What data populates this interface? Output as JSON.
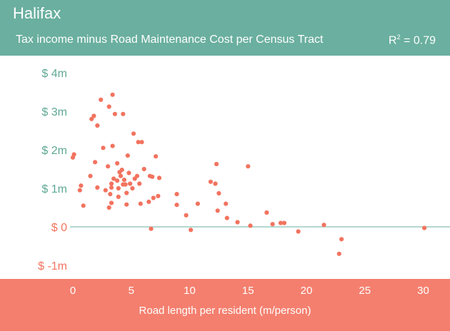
{
  "colors": {
    "header_bg": "#6aaf9f",
    "footer_bg": "#f47f6e",
    "point": "#f2735f",
    "zero_line": "#6aaf9f",
    "y_tick_positive": "#5ea894",
    "y_tick_nonpositive": "#f2735f",
    "x_tick": "#ffffff"
  },
  "header": {
    "title": "Halifax",
    "subtitle": "Tax income minus Road Maintenance Cost per Census Tract",
    "r2_label": "R",
    "r2_sup": "2",
    "r2_value": " = 0.79"
  },
  "chart_data": {
    "type": "scatter",
    "title": "Tax income minus Road Maintenance Cost per Census Tract",
    "xlabel": "Road length per resident (m/person)",
    "ylabel": "",
    "xlim": [
      -1.2,
      33.5
    ],
    "ylim": [
      -1.35,
      4.35
    ],
    "x_ticks": [
      0,
      5,
      10,
      15,
      20,
      25,
      30
    ],
    "x_tick_labels": [
      "0",
      "5",
      "10",
      "15",
      "20",
      "25",
      "30"
    ],
    "y_ticks": [
      4,
      3,
      2,
      1,
      0,
      -1
    ],
    "y_tick_labels": [
      "$ 4m",
      "$ 3m",
      "$ 2m",
      "$ 1m",
      "$ 0",
      "$ -1m"
    ],
    "annotation": "R² = 0.79",
    "grid": false,
    "zero_line": true,
    "points": [
      [
        0.0,
        1.8
      ],
      [
        0.1,
        1.88
      ],
      [
        0.6,
        0.95
      ],
      [
        0.7,
        1.07
      ],
      [
        0.9,
        0.55
      ],
      [
        1.5,
        1.32
      ],
      [
        1.6,
        2.8
      ],
      [
        1.8,
        2.88
      ],
      [
        1.9,
        1.68
      ],
      [
        2.1,
        2.63
      ],
      [
        2.1,
        1.02
      ],
      [
        2.4,
        3.3
      ],
      [
        2.6,
        2.05
      ],
      [
        2.8,
        0.95
      ],
      [
        3.0,
        1.57
      ],
      [
        3.1,
        3.12
      ],
      [
        3.3,
        1.12
      ],
      [
        3.3,
        1.02
      ],
      [
        3.1,
        0.5
      ],
      [
        3.2,
        0.85
      ],
      [
        3.3,
        0.62
      ],
      [
        3.4,
        3.43
      ],
      [
        3.4,
        2.1
      ],
      [
        3.5,
        1.25
      ],
      [
        3.6,
        2.93
      ],
      [
        3.8,
        1.65
      ],
      [
        3.8,
        1.2
      ],
      [
        3.9,
        1.0
      ],
      [
        3.9,
        0.78
      ],
      [
        4.0,
        1.42
      ],
      [
        4.2,
        1.48
      ],
      [
        4.3,
        2.93
      ],
      [
        4.3,
        1.1
      ],
      [
        4.1,
        1.32
      ],
      [
        4.4,
        1.22
      ],
      [
        4.5,
        1.1
      ],
      [
        4.6,
        0.88
      ],
      [
        4.6,
        0.58
      ],
      [
        4.7,
        1.85
      ],
      [
        4.8,
        1.4
      ],
      [
        4.9,
        1.12
      ],
      [
        5.1,
        1.0
      ],
      [
        5.2,
        2.42
      ],
      [
        5.3,
        1.25
      ],
      [
        5.5,
        1.32
      ],
      [
        5.6,
        2.2
      ],
      [
        5.7,
        1.12
      ],
      [
        5.8,
        0.6
      ],
      [
        5.9,
        2.2
      ],
      [
        6.1,
        1.5
      ],
      [
        6.5,
        0.65
      ],
      [
        6.6,
        1.32
      ],
      [
        6.8,
        1.3
      ],
      [
        6.9,
        0.75
      ],
      [
        7.1,
        1.83
      ],
      [
        7.3,
        0.8
      ],
      [
        7.4,
        1.27
      ],
      [
        6.7,
        -0.05
      ],
      [
        8.9,
        0.85
      ],
      [
        8.9,
        0.57
      ],
      [
        9.7,
        0.3
      ],
      [
        10.1,
        -0.08
      ],
      [
        10.7,
        0.6
      ],
      [
        11.8,
        1.17
      ],
      [
        12.2,
        1.12
      ],
      [
        12.3,
        1.63
      ],
      [
        12.5,
        0.87
      ],
      [
        12.4,
        0.42
      ],
      [
        13.1,
        0.6
      ],
      [
        13.2,
        0.23
      ],
      [
        14.1,
        0.12
      ],
      [
        15.0,
        1.57
      ],
      [
        15.2,
        0.03
      ],
      [
        16.6,
        0.37
      ],
      [
        17.1,
        0.07
      ],
      [
        17.8,
        0.1
      ],
      [
        18.1,
        0.1
      ],
      [
        19.3,
        -0.12
      ],
      [
        21.5,
        0.05
      ],
      [
        22.8,
        -0.7
      ],
      [
        23.0,
        -0.32
      ],
      [
        30.1,
        -0.03
      ]
    ]
  }
}
